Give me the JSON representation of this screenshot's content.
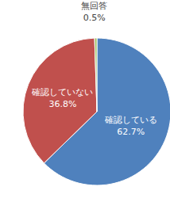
{
  "chart_data": {
    "type": "pie",
    "categories": [
      "確認している",
      "確認していない",
      "無回答"
    ],
    "values": [
      62.7,
      36.8,
      0.5
    ],
    "value_labels": [
      "62.7%",
      "36.8%",
      "0.5%"
    ],
    "colors": [
      "#4f81bd",
      "#c0504d",
      "#9bbb59"
    ],
    "data_labels": true
  }
}
